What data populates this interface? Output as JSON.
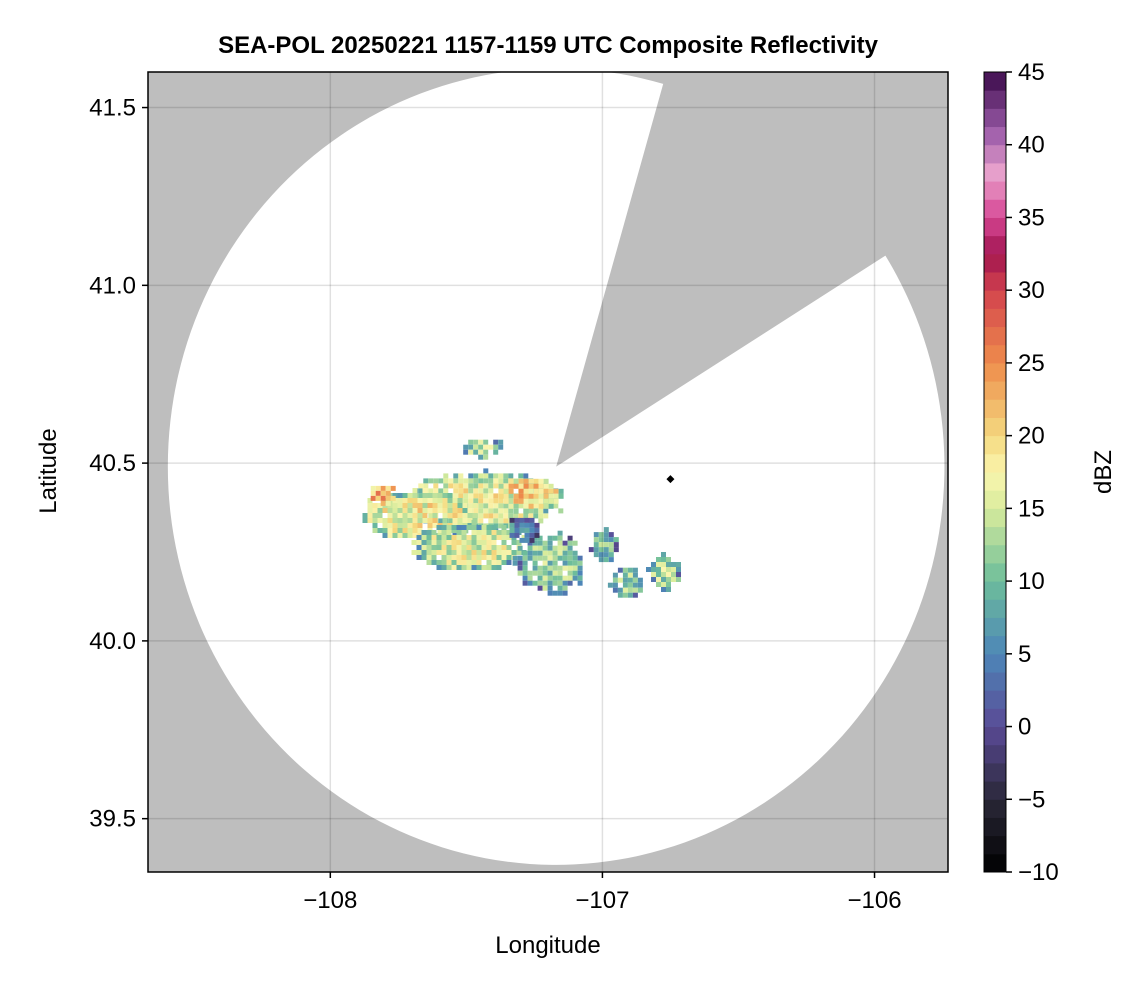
{
  "chart_data": {
    "type": "heatmap",
    "title": "SEA-POL 20250221 1157-1159 UTC Composite Reflectivity",
    "xlabel": "Longitude",
    "ylabel": "Latitude",
    "xlim": [
      -108.67,
      -105.73
    ],
    "ylim": [
      39.35,
      41.6
    ],
    "xticks": [
      -108,
      -107,
      -106
    ],
    "xtick_labels": [
      "−108",
      "−107",
      "−106"
    ],
    "yticks": [
      39.5,
      40.0,
      40.5,
      41.0,
      41.5
    ],
    "ytick_labels": [
      "39.5",
      "40.0",
      "40.5",
      "41.0",
      "41.5"
    ],
    "grid": true,
    "background_color": "#bebebe",
    "radar_coverage": {
      "center": [
        -107.17,
        40.49
      ],
      "outer_radius_deg_lat": 1.12,
      "blocked_sector_azimuth_deg": [
        16,
        58
      ]
    },
    "radar_marker": {
      "lon": -106.75,
      "lat": 40.455,
      "shape": "diamond",
      "color": "#000000"
    },
    "colorbar": {
      "label": "dBZ",
      "min": -10,
      "max": 45,
      "ticks": [
        -10,
        -5,
        0,
        5,
        10,
        15,
        20,
        25,
        30,
        35,
        40,
        45
      ],
      "tick_labels": [
        "−10",
        "−5",
        "0",
        "5",
        "10",
        "15",
        "20",
        "25",
        "30",
        "35",
        "40",
        "45"
      ],
      "colormap_stops": [
        [
          "-10",
          "#000000"
        ],
        [
          "-5",
          "#2a2838"
        ],
        [
          "0",
          "#5a4a96"
        ],
        [
          "5",
          "#4d86b8"
        ],
        [
          "10",
          "#6dbd9b"
        ],
        [
          "15",
          "#d8ec9c"
        ],
        [
          "17.5",
          "#fbf5ae"
        ],
        [
          "20",
          "#f4d97f"
        ],
        [
          "25",
          "#ee8c4c"
        ],
        [
          "30",
          "#d3434d"
        ],
        [
          "32.5",
          "#a01450"
        ],
        [
          "35",
          "#d64694"
        ],
        [
          "38",
          "#e9a2cc"
        ],
        [
          "41",
          "#9a5aa8"
        ],
        [
          "45",
          "#3b0a4a"
        ]
      ]
    },
    "echo_regions": [
      {
        "lon": -107.45,
        "lat": 40.4,
        "rlon": 0.3,
        "rlat": 0.085,
        "dbz": 14
      },
      {
        "lon": -107.28,
        "lat": 40.42,
        "rlon": 0.12,
        "rlat": 0.05,
        "dbz": 18
      },
      {
        "lon": -107.68,
        "lat": 40.36,
        "rlon": 0.22,
        "rlat": 0.07,
        "dbz": 15
      },
      {
        "lon": -107.5,
        "lat": 40.27,
        "rlon": 0.22,
        "rlat": 0.07,
        "dbz": 13
      },
      {
        "lon": -107.2,
        "lat": 40.22,
        "rlon": 0.13,
        "rlat": 0.09,
        "dbz": 9
      },
      {
        "lon": -107.0,
        "lat": 40.27,
        "rlon": 0.05,
        "rlat": 0.05,
        "dbz": 7
      },
      {
        "lon": -106.92,
        "lat": 40.17,
        "rlon": 0.06,
        "rlat": 0.05,
        "dbz": 9
      },
      {
        "lon": -106.78,
        "lat": 40.2,
        "rlon": 0.06,
        "rlat": 0.05,
        "dbz": 10
      },
      {
        "lon": -107.45,
        "lat": 40.55,
        "rlon": 0.08,
        "rlat": 0.03,
        "dbz": 10
      },
      {
        "lon": -107.3,
        "lat": 40.32,
        "rlon": 0.06,
        "rlat": 0.04,
        "dbz": 3
      },
      {
        "lon": -107.82,
        "lat": 40.42,
        "rlon": 0.05,
        "rlat": 0.03,
        "dbz": 21
      }
    ]
  }
}
